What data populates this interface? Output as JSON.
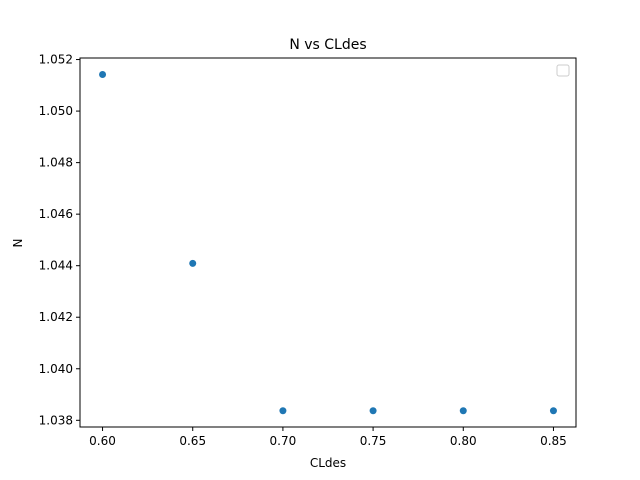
{
  "chart_data": {
    "type": "scatter",
    "title": "N vs CLdes",
    "xlabel": "CLdes",
    "ylabel": "N",
    "x": [
      0.6,
      0.65,
      0.7,
      0.75,
      0.8,
      0.85
    ],
    "y": [
      1.05142,
      1.04409,
      1.03837,
      1.03837,
      1.03837,
      1.03837
    ],
    "xlim": [
      0.5875,
      0.8625
    ],
    "ylim": [
      1.03774,
      1.05206
    ],
    "xticks": [
      0.6,
      0.65,
      0.7,
      0.75,
      0.8,
      0.85
    ],
    "xtick_labels": [
      "0.60",
      "0.65",
      "0.70",
      "0.75",
      "0.80",
      "0.85"
    ],
    "yticks": [
      1.038,
      1.04,
      1.042,
      1.044,
      1.046,
      1.048,
      1.05,
      1.052
    ],
    "ytick_labels": [
      "1.038",
      "1.040",
      "1.042",
      "1.044",
      "1.046",
      "1.048",
      "1.050",
      "1.052"
    ],
    "marker_color": "#1f77b4",
    "grid": false,
    "legend": "upper-right, empty"
  }
}
